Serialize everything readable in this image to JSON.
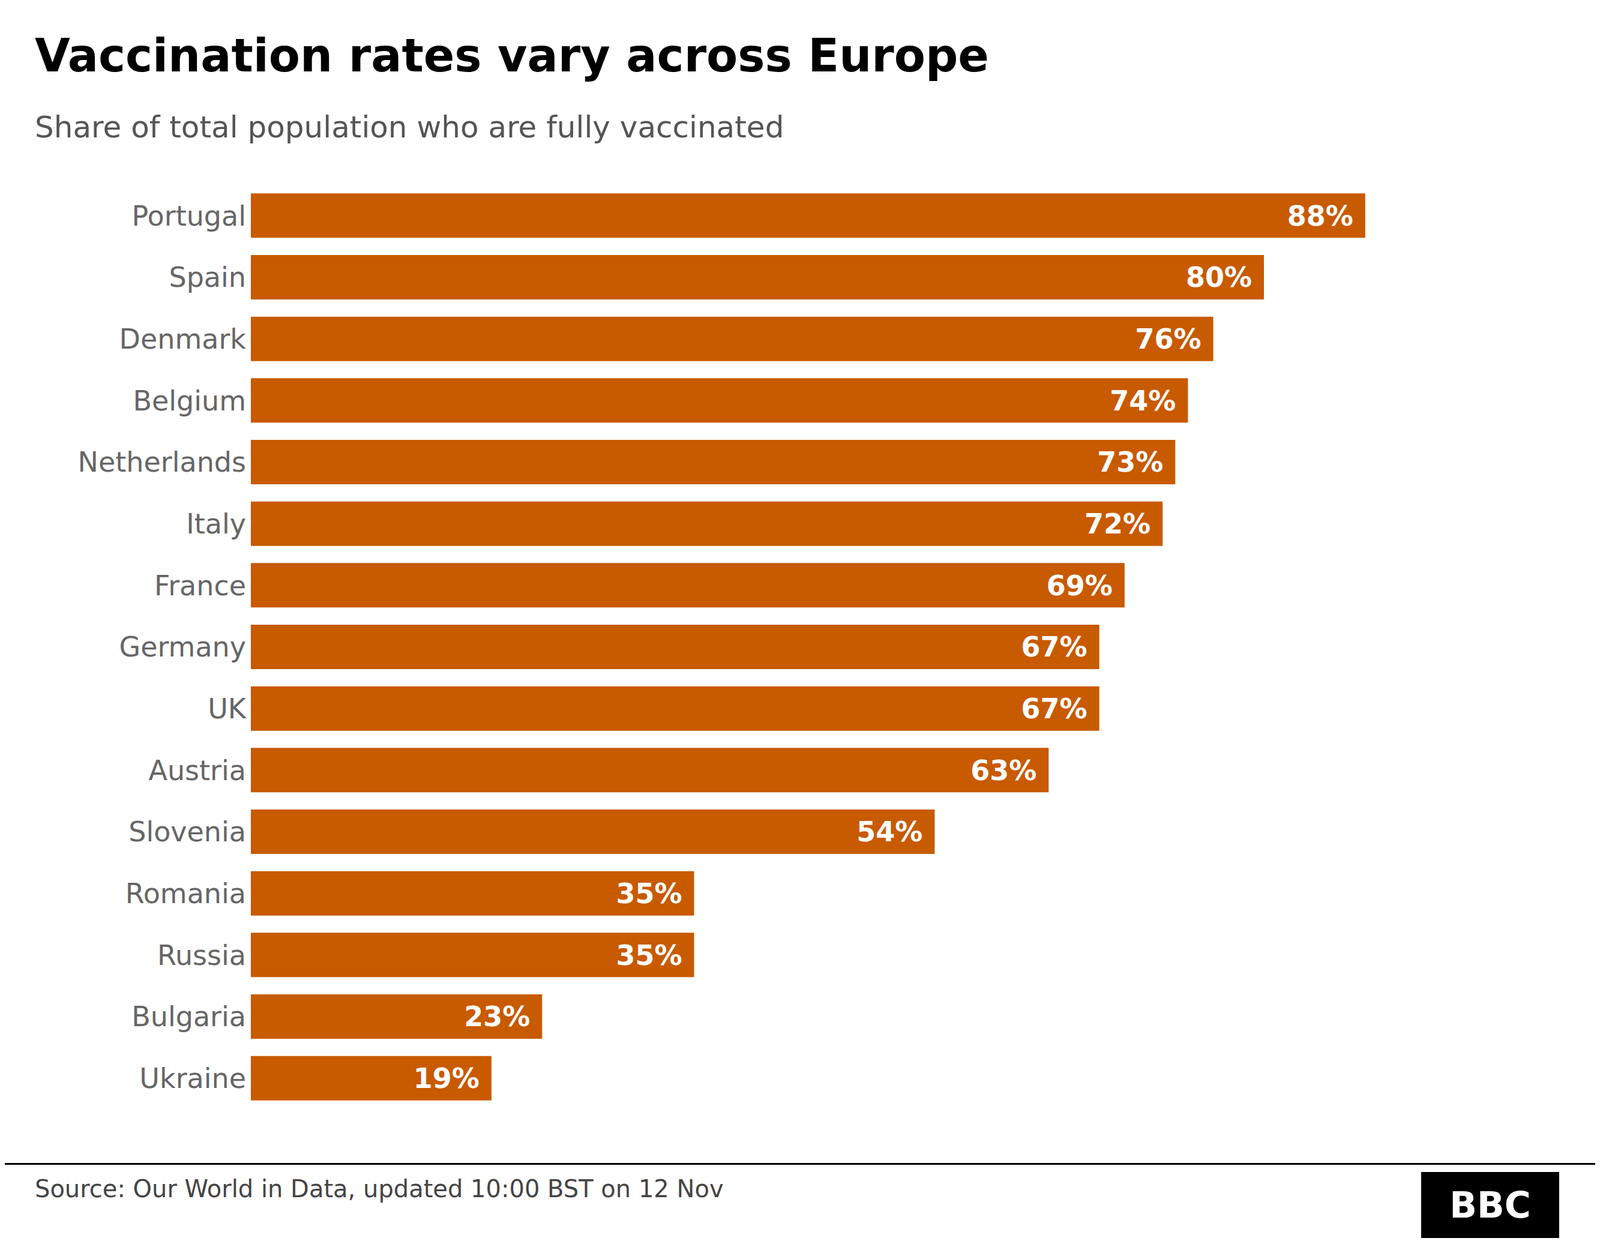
{
  "chart_data": {
    "type": "bar",
    "orientation": "horizontal",
    "title": "Vaccination rates vary across Europe",
    "subtitle": "Share of total population who are fully vaccinated",
    "annotations": [
      "Source: Our World in Data, updated 10:00 BST on 12 Nov",
      "BBC"
    ],
    "categories": [
      "Portugal",
      "Spain",
      "Denmark",
      "Belgium",
      "Netherlands",
      "Italy",
      "France",
      "Germany",
      "UK",
      "Austria",
      "Slovenia",
      "Romania",
      "Russia",
      "Bulgaria",
      "Ukraine"
    ],
    "values": [
      88,
      80,
      76,
      74,
      73,
      72,
      69,
      67,
      67,
      63,
      54,
      35,
      35,
      23,
      19
    ],
    "value_labels": [
      "88%",
      "80%",
      "76%",
      "74%",
      "73%",
      "72%",
      "69%",
      "67%",
      "67%",
      "63%",
      "54%",
      "35%",
      "35%",
      "23%",
      "19%"
    ],
    "data_labels": true,
    "color": "#C85A00",
    "xlim": [
      0,
      100
    ],
    "tick_labels": "y",
    "grid": false
  }
}
